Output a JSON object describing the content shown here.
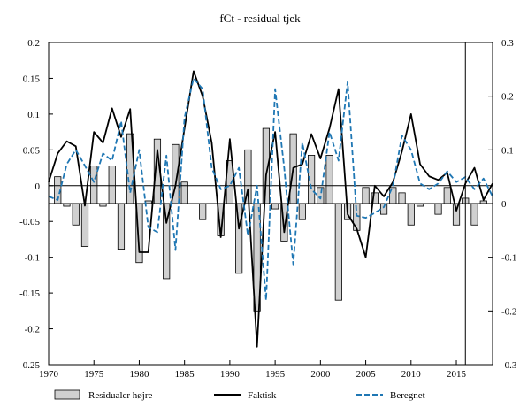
{
  "chart_data": {
    "type": "bar+line",
    "title": "fCt - residual tjek",
    "x_ticks": [
      1970,
      1975,
      1980,
      1985,
      1990,
      1995,
      2000,
      2005,
      2010,
      2015
    ],
    "xlim": [
      1970,
      2019
    ],
    "left_axis": {
      "ylim": [
        -0.25,
        0.2
      ],
      "ticks": [
        -0.25,
        -0.2,
        -0.15,
        -0.1,
        -0.05,
        0,
        0.05,
        0.1,
        0.15,
        0.2
      ],
      "tick_labels": [
        "-0.25",
        "-0.2",
        "-0.15",
        "-0.1",
        "-0.05",
        "0",
        "0.05",
        "0.1",
        "0.15",
        "0.2"
      ]
    },
    "right_axis": {
      "ylim": [
        -0.3,
        0.3
      ],
      "ticks": [
        -0.3,
        -0.2,
        -0.1,
        0,
        0.1,
        0.2,
        0.3
      ],
      "tick_labels": [
        "-0.3",
        "-0.2",
        "-0.1",
        "0",
        "0.1",
        "0.2",
        "0.3"
      ]
    },
    "reference_lines": [
      {
        "axis": "left",
        "y": 0
      },
      {
        "axis": "right",
        "y": 0
      }
    ],
    "vertical_marker": {
      "x": 2016
    },
    "legend_placement": "bottom",
    "series": [
      {
        "name": "Residualer højre",
        "type": "bar",
        "axis": "right",
        "color": "#d0d0d0",
        "x": [
          1970,
          1971,
          1972,
          1973,
          1974,
          1975,
          1976,
          1977,
          1978,
          1979,
          1980,
          1981,
          1982,
          1983,
          1984,
          1985,
          1986,
          1987,
          1988,
          1989,
          1990,
          1991,
          1992,
          1993,
          1994,
          1995,
          1996,
          1997,
          1998,
          1999,
          2000,
          2001,
          2002,
          2003,
          2004,
          2005,
          2006,
          2007,
          2008,
          2009,
          2010,
          2011,
          2012,
          2013,
          2014,
          2015,
          2016,
          2017,
          2018
        ],
        "values": [
          0.0,
          0.05,
          -0.005,
          -0.04,
          -0.08,
          0.07,
          -0.005,
          0.07,
          -0.085,
          0.13,
          -0.11,
          0.005,
          0.12,
          -0.14,
          0.11,
          0.04,
          0.0,
          -0.03,
          0.0,
          -0.06,
          0.08,
          -0.13,
          0.1,
          -0.2,
          0.14,
          -0.01,
          -0.07,
          0.13,
          -0.03,
          0.09,
          0.03,
          0.09,
          -0.18,
          -0.03,
          -0.05,
          0.03,
          0.02,
          -0.02,
          0.03,
          0.02,
          -0.04,
          -0.005,
          0.0,
          -0.02,
          0.03,
          -0.04,
          0.01,
          -0.04,
          0.005
        ]
      },
      {
        "name": "Faktisk",
        "type": "line",
        "axis": "left",
        "color": "#000000",
        "x": [
          1970,
          1971,
          1972,
          1973,
          1974,
          1975,
          1976,
          1977,
          1978,
          1979,
          1980,
          1981,
          1982,
          1983,
          1984,
          1985,
          1986,
          1987,
          1988,
          1989,
          1990,
          1991,
          1992,
          1993,
          1994,
          1995,
          1996,
          1997,
          1998,
          1999,
          2000,
          2001,
          2002,
          2003,
          2004,
          2005,
          2006,
          2007,
          2008,
          2009,
          2010,
          2011,
          2012,
          2013,
          2014,
          2015,
          2016,
          2017,
          2018,
          2019
        ],
        "values": [
          0.005,
          0.045,
          0.062,
          0.055,
          -0.028,
          0.075,
          0.06,
          0.108,
          0.068,
          0.107,
          -0.093,
          -0.093,
          0.05,
          -0.052,
          0.0,
          0.08,
          0.16,
          0.125,
          0.06,
          -0.072,
          0.065,
          -0.06,
          -0.005,
          -0.225,
          0.015,
          0.075,
          -0.065,
          0.025,
          0.03,
          0.072,
          0.038,
          0.08,
          0.135,
          -0.04,
          -0.06,
          -0.1,
          0.0,
          -0.015,
          0.005,
          0.048,
          0.1,
          0.03,
          0.013,
          0.008,
          0.018,
          -0.035,
          0.003,
          0.025,
          -0.02,
          0.003
        ]
      },
      {
        "name": "Beregnet",
        "type": "line",
        "dashed": true,
        "axis": "left",
        "color": "#1f77b4",
        "x": [
          1970,
          1971,
          1972,
          1973,
          1974,
          1975,
          1976,
          1977,
          1978,
          1979,
          1980,
          1981,
          1982,
          1983,
          1984,
          1985,
          1986,
          1987,
          1988,
          1989,
          1990,
          1991,
          1992,
          1993,
          1994,
          1995,
          1996,
          1997,
          1998,
          1999,
          2000,
          2001,
          2002,
          2003,
          2004,
          2005,
          2006,
          2007,
          2008,
          2009,
          2010,
          2011,
          2012,
          2013,
          2014,
          2015,
          2016,
          2017,
          2018,
          2019
        ],
        "values": [
          -0.015,
          -0.02,
          0.03,
          0.05,
          0.028,
          0.005,
          0.045,
          0.035,
          0.09,
          -0.01,
          0.05,
          -0.058,
          -0.065,
          0.042,
          -0.09,
          0.095,
          0.15,
          0.135,
          0.025,
          -0.005,
          0.0,
          0.025,
          -0.07,
          0.0,
          -0.16,
          0.135,
          0.025,
          -0.11,
          0.06,
          -0.005,
          -0.018,
          0.075,
          0.035,
          0.145,
          -0.042,
          -0.045,
          -0.038,
          -0.03,
          0.0,
          0.07,
          0.05,
          0.003,
          -0.005,
          0.003,
          0.02,
          0.005,
          0.012,
          -0.005,
          0.01,
          -0.015
        ]
      }
    ]
  }
}
